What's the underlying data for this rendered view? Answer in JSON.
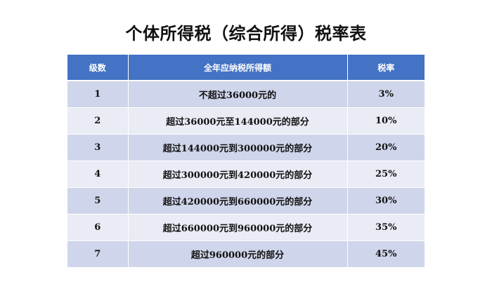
{
  "title": "个体所得税（综合所得）税率表",
  "table": {
    "headers": [
      "级数",
      "全年应纳税所得额",
      "税率"
    ],
    "rows": [
      {
        "level": "1",
        "income": "不超过36000元的",
        "rate": "3%"
      },
      {
        "level": "2",
        "income": "超过36000元至144000元的部分",
        "rate": "10%"
      },
      {
        "level": "3",
        "income": "超过144000元到300000元的部分",
        "rate": "20%"
      },
      {
        "level": "4",
        "income": "超过300000元到420000元的部分",
        "rate": "25%"
      },
      {
        "level": "5",
        "income": "超过420000元到660000元的部分",
        "rate": "30%"
      },
      {
        "level": "6",
        "income": "超过660000元到960000元的部分",
        "rate": "35%"
      },
      {
        "level": "7",
        "income": "超过960000元的部分",
        "rate": "45%"
      }
    ]
  },
  "colors": {
    "header_bg": "#4472c4",
    "row_odd_bg": "#cfd5ea",
    "row_even_bg": "#e9ebf5"
  }
}
